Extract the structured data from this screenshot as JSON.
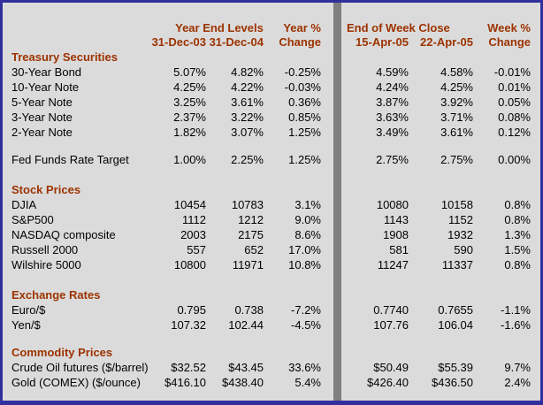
{
  "table": {
    "header": {
      "left_group": "Year End Levels",
      "left_sub1": "31-Dec-03",
      "left_sub2": "31-Dec-04",
      "left_pct_top": "Year %",
      "left_pct_bottom": "Change",
      "right_group": "End of Week Close",
      "right_sub1": "15-Apr-05",
      "right_sub2": "22-Apr-05",
      "right_pct_top": "Week %",
      "right_pct_bottom": "Change"
    },
    "rows": [
      {
        "label": "Treasury Securities"
      },
      {
        "label": "30-Year Bond",
        "c1": "5.07%",
        "c2": "4.82%",
        "c3": "-0.25%",
        "c4": "4.59%",
        "c5": "4.58%",
        "c6": "-0.01%"
      },
      {
        "label": "10-Year Note",
        "c1": "4.25%",
        "c2": "4.22%",
        "c3": "-0.03%",
        "c4": "4.24%",
        "c5": "4.25%",
        "c6": "0.01%"
      },
      {
        "label": "5-Year Note",
        "c1": "3.25%",
        "c2": "3.61%",
        "c3": "0.36%",
        "c4": "3.87%",
        "c5": "3.92%",
        "c6": "0.05%"
      },
      {
        "label": "3-Year Note",
        "c1": "2.37%",
        "c2": "3.22%",
        "c3": "0.85%",
        "c4": "3.63%",
        "c5": "3.71%",
        "c6": "0.08%"
      },
      {
        "label": "2-Year Note",
        "c1": "1.82%",
        "c2": "3.07%",
        "c3": "1.25%",
        "c4": "3.49%",
        "c5": "3.61%",
        "c6": "0.12%"
      },
      {
        "label": "Fed Funds Rate Target",
        "c1": "1.00%",
        "c2": "2.25%",
        "c3": "1.25%",
        "c4": "2.75%",
        "c5": "2.75%",
        "c6": "0.00%"
      },
      {
        "label": "Stock Prices"
      },
      {
        "label": "DJIA",
        "c1": "10454",
        "c2": "10783",
        "c3": "3.1%",
        "c4": "10080",
        "c5": "10158",
        "c6": "0.8%"
      },
      {
        "label": "S&P500",
        "c1": "1112",
        "c2": "1212",
        "c3": "9.0%",
        "c4": "1143",
        "c5": "1152",
        "c6": "0.8%"
      },
      {
        "label": "NASDAQ composite",
        "c1": "2003",
        "c2": "2175",
        "c3": "8.6%",
        "c4": "1908",
        "c5": "1932",
        "c6": "1.3%"
      },
      {
        "label": "Russell 2000",
        "c1": "557",
        "c2": "652",
        "c3": "17.0%",
        "c4": "581",
        "c5": "590",
        "c6": "1.5%"
      },
      {
        "label": "Wilshire 5000",
        "c1": "10800",
        "c2": "11971",
        "c3": "10.8%",
        "c4": "11247",
        "c5": "11337",
        "c6": "0.8%"
      },
      {
        "label": "Exchange Rates"
      },
      {
        "label": "Euro/$",
        "c1": "0.795",
        "c2": "0.738",
        "c3": "-7.2%",
        "c4": "0.7740",
        "c5": "0.7655",
        "c6": "-1.1%"
      },
      {
        "label": "Yen/$",
        "c1": "107.32",
        "c2": "102.44",
        "c3": "-4.5%",
        "c4": "107.76",
        "c5": "106.04",
        "c6": "-1.6%"
      },
      {
        "label": "Commodity Prices"
      },
      {
        "label": "Crude Oil futures ($/barrel)",
        "c1": "$32.52",
        "c2": "$43.45",
        "c3": "33.6%",
        "c4": "$50.49",
        "c5": "$55.39",
        "c6": "9.7%"
      },
      {
        "label": "Gold (COMEX) ($/ounce)",
        "c1": "$416.10",
        "c2": "$438.40",
        "c3": "5.4%",
        "c4": "$426.40",
        "c5": "$436.50",
        "c6": "2.4%"
      }
    ]
  },
  "colors": {
    "background": "#DBDBDB",
    "border": "#322E9E",
    "divider": "#7F7F7F",
    "heading_text": "#9C3300",
    "body_text": "#000000"
  }
}
